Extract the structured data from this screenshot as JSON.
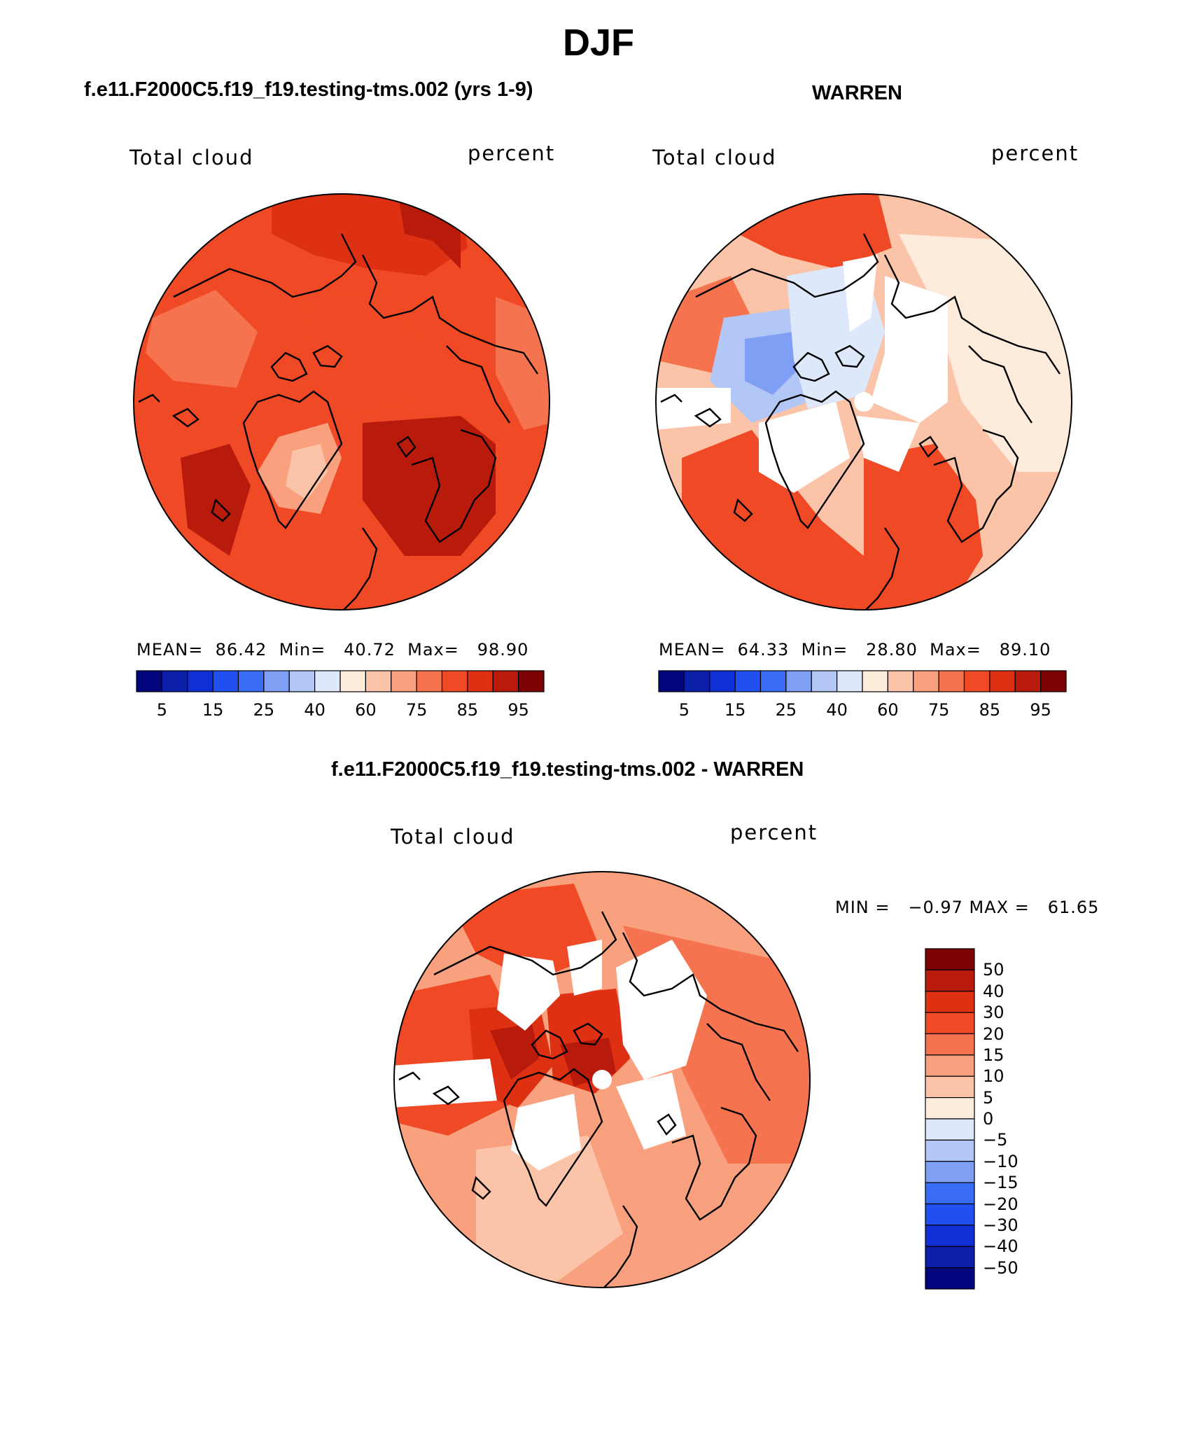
{
  "title": "DJF",
  "colors": {
    "sequential": [
      "#03057d",
      "#0b1fa8",
      "#1030d6",
      "#2150f0",
      "#3a6df5",
      "#7f9ff5",
      "#b3c7f7",
      "#dde9fb",
      "#fdebdc",
      "#fbc4a9",
      "#f9a07e",
      "#f5744f",
      "#ef4a25",
      "#de3013",
      "#b81b0b",
      "#7c0203"
    ],
    "diverging": [
      "#7c0203",
      "#b81b0b",
      "#de3013",
      "#ef4a25",
      "#f5744f",
      "#f9a07e",
      "#fbc4a9",
      "#fdebdc",
      "#dde9fb",
      "#b3c7f7",
      "#7f9ff5",
      "#3a6df5",
      "#2150f0",
      "#1030d6",
      "#0b1fa8",
      "#03057d"
    ],
    "coastline": "#000000"
  },
  "panels": [
    {
      "id": "model",
      "header": "f.e11.F2000C5.f19_f19.testing-tms.002 (yrs 1-9)",
      "left_label": "Total cloud",
      "right_label": "percent",
      "stats_text": "MEAN=  86.42  Min=   40.72  Max=   98.90",
      "colorbar_ticks": [
        "5",
        "15",
        "25",
        "40",
        "60",
        "75",
        "85",
        "95"
      ]
    },
    {
      "id": "obs",
      "header": "WARREN",
      "left_label": "Total cloud",
      "right_label": "percent",
      "stats_text": "MEAN=  64.33  Min=   28.80  Max=   89.10",
      "colorbar_ticks": [
        "5",
        "15",
        "25",
        "40",
        "60",
        "75",
        "85",
        "95"
      ]
    }
  ],
  "difference": {
    "header": "f.e11.F2000C5.f19_f19.testing-tms.002 - WARREN",
    "left_label": "Total cloud",
    "right_label": "percent",
    "minmax_text": "MIN =   −0.97 MAX =   61.65",
    "colorbar_ticks": [
      "50",
      "40",
      "30",
      "20",
      "15",
      "10",
      "5",
      "0",
      "−5",
      "−10",
      "−15",
      "−20",
      "−30",
      "−40",
      "−50"
    ]
  }
}
